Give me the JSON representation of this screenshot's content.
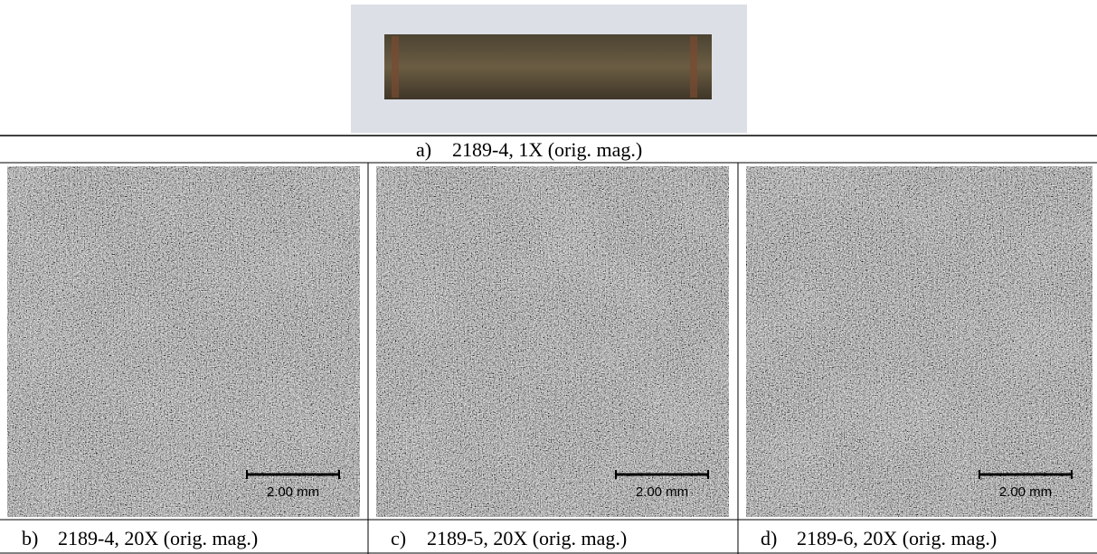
{
  "panels": [
    {
      "label": "a)",
      "caption": "2189-4, 1X (orig. mag.)"
    },
    {
      "label": "b)",
      "caption": "2189-4, 20X (orig. mag.)",
      "scale_bar": "2.00 mm"
    },
    {
      "label": "c)",
      "caption": "2189-5, 20X (orig. mag.)",
      "scale_bar": "2.00 mm"
    },
    {
      "label": "d)",
      "caption": "2189-6, 20X (orig. mag.)",
      "scale_bar": "2.00 mm"
    }
  ]
}
